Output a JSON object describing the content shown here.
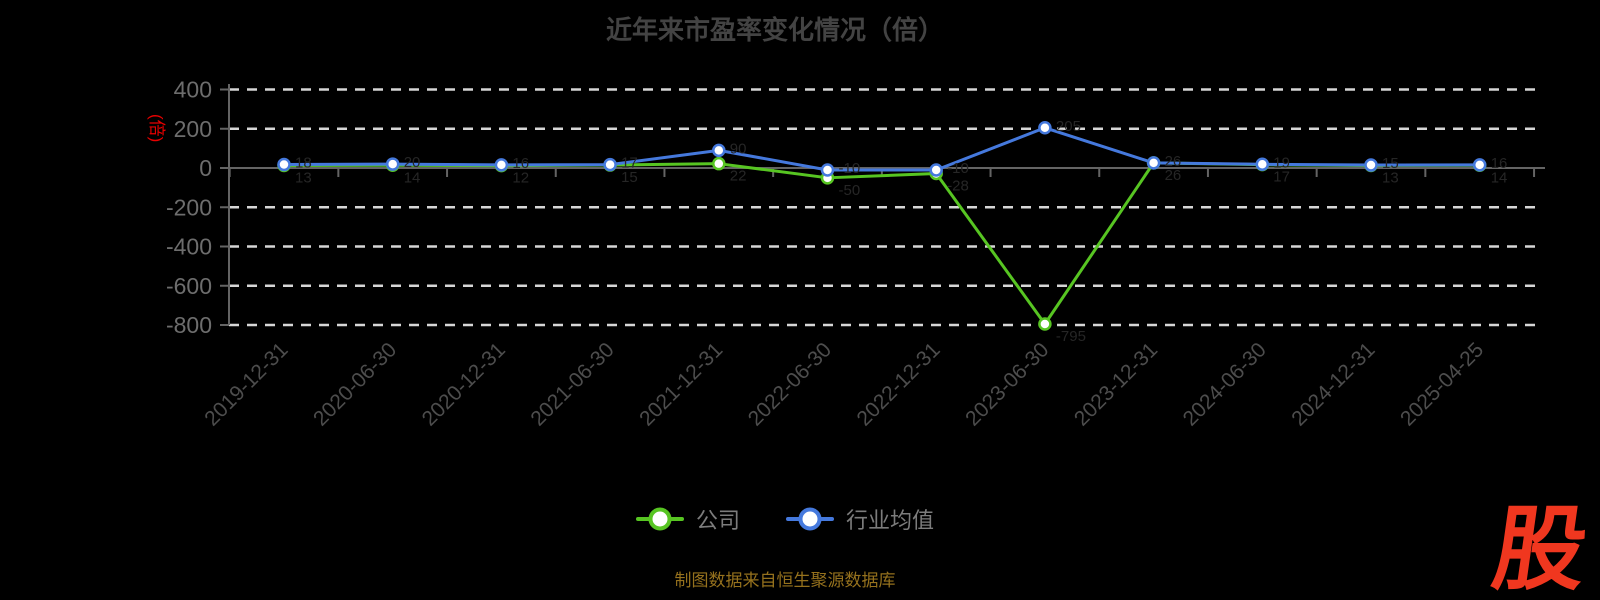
{
  "header": {
    "title": "近年来市盈率变化情况（倍）"
  },
  "y_axis": {
    "unit_label": "(倍)",
    "unit_color": "#e80000",
    "ticks": [
      "400",
      "200",
      "0",
      "-200",
      "-400",
      "-600",
      "-800"
    ]
  },
  "legend": {
    "items": [
      {
        "label": "公司",
        "color": "#57c522"
      },
      {
        "label": "行业均值",
        "color": "#4579dd"
      }
    ]
  },
  "footer": {
    "source_note": "制图数据来自恒生聚源数据库"
  },
  "watermark": {
    "text": "股",
    "color": "#f0371f"
  },
  "colors": {
    "background": "#000000",
    "title": "#434343",
    "grid_dashed": "#d6d6d6",
    "axis_line": "#646464",
    "y_tick_label": "#6d6d6d",
    "x_tick_label": "#4d4d4d",
    "company_series": "#57c522",
    "industry_series": "#4579dd",
    "marker_fill": "#ffffff",
    "point_label": "#262626"
  },
  "chart_data": {
    "type": "line",
    "title": "近年来市盈率变化情况（倍）",
    "ylabel": "(倍)",
    "xlabel": "",
    "categories": [
      "2019-12-31",
      "2020-06-30",
      "2020-12-31",
      "2021-06-30",
      "2021-12-31",
      "2022-06-30",
      "2022-12-31",
      "2023-06-30",
      "2023-12-31",
      "2024-06-30",
      "2024-12-31",
      "2025-04-25"
    ],
    "series": [
      {
        "name": "公司",
        "color": "#57c522",
        "values": [
          13,
          14,
          12,
          15,
          22,
          -50,
          -28,
          -795,
          26,
          17,
          13,
          14
        ]
      },
      {
        "name": "行业均值",
        "color": "#4579dd",
        "values": [
          18,
          20,
          16,
          17,
          90,
          -10,
          -10,
          205,
          26,
          19,
          15,
          16
        ]
      }
    ],
    "ylim": [
      -800,
      420
    ],
    "yticks": [
      400,
      200,
      0,
      -200,
      -400,
      -600,
      -800
    ],
    "grid": "horizontal-dashed-white, zero-line-solid-gray",
    "x_label_rotation": 45,
    "legend_position": "bottom-center"
  }
}
